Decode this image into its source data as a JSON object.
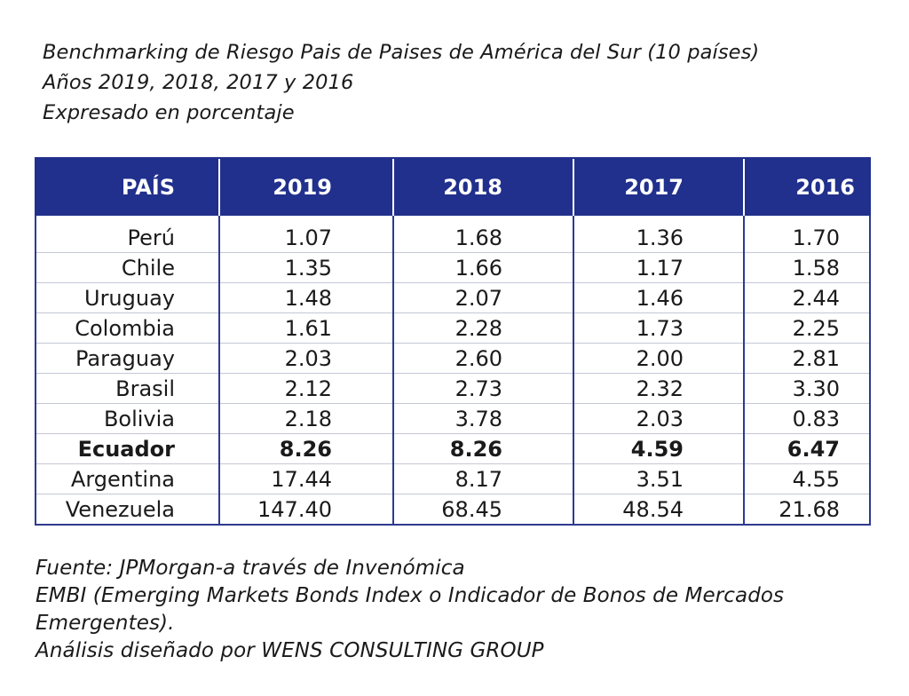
{
  "header": {
    "line1": "Benchmarking de Riesgo Pais de Paises de América del Sur (10 países)",
    "line2": "Años 2019, 2018, 2017 y 2016",
    "line3": "Expresado en porcentaje"
  },
  "table": {
    "columns": [
      "PAÍS",
      "2019",
      "2018",
      "2017",
      "2016"
    ],
    "rows": [
      {
        "pais": "Perú",
        "v2019": "1.07",
        "v2018": "1.68",
        "v2017": "1.36",
        "v2016": "1.70"
      },
      {
        "pais": "Chile",
        "v2019": "1.35",
        "v2018": "1.66",
        "v2017": "1.17",
        "v2016": "1.58"
      },
      {
        "pais": "Uruguay",
        "v2019": "1.48",
        "v2018": "2.07",
        "v2017": "1.46",
        "v2016": "2.44"
      },
      {
        "pais": "Colombia",
        "v2019": "1.61",
        "v2018": "2.28",
        "v2017": "1.73",
        "v2016": "2.25"
      },
      {
        "pais": "Paraguay",
        "v2019": "2.03",
        "v2018": "2.60",
        "v2017": "2.00",
        "v2016": "2.81"
      },
      {
        "pais": "Brasil",
        "v2019": "2.12",
        "v2018": "2.73",
        "v2017": "2.32",
        "v2016": "3.30"
      },
      {
        "pais": "Bolivia",
        "v2019": "2.18",
        "v2018": "3.78",
        "v2017": "2.03",
        "v2016": "0.83"
      },
      {
        "pais": "Ecuador",
        "v2019": "8.26",
        "v2018": "8.26",
        "v2017": "4.59",
        "v2016": "6.47"
      },
      {
        "pais": "Argentina",
        "v2019": "17.44",
        "v2018": "8.17",
        "v2017": "3.51",
        "v2016": "4.55"
      },
      {
        "pais": "Venezuela",
        "v2019": "147.40",
        "v2018": "68.45",
        "v2017": "48.54",
        "v2016": "21.68"
      }
    ]
  },
  "footer": {
    "line1": "Fuente: JPMorgan-a través de Invenómica",
    "line2": "EMBI (Emerging Markets Bonds Index o Indicador de Bonos de Mercados Emergentes).",
    "line3": "Análisis diseñado por WENS CONSULTING GROUP"
  },
  "colors": {
    "header_bg": "#21308c",
    "header_text": "#ffffff",
    "border": "#2e3a8f"
  }
}
